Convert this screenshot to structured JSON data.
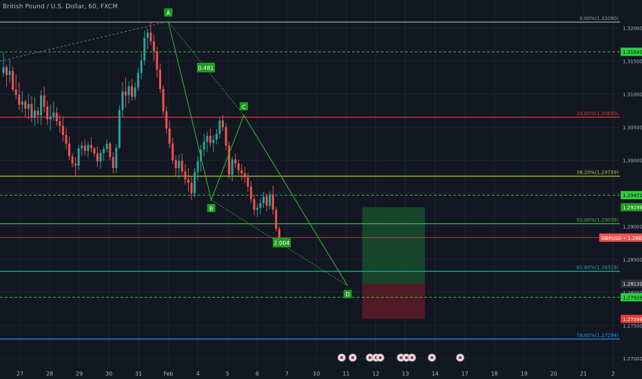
{
  "header": {
    "title": "British Pound / U.S. Dollar, 60, FXCM"
  },
  "colors": {
    "background": "#131722",
    "candle_up": "#26a69a",
    "candle_down": "#ef5350",
    "grid": "#1f2433",
    "axis_text": "#b2b5be",
    "pattern": "#2eb82e",
    "price_line": "#ef5350",
    "target_zone": "#1a6b35",
    "stop_zone": "#7a1e2a"
  },
  "chart_data": {
    "type": "candlestick",
    "symbol": "GBPUSD",
    "timeframe": "60",
    "x_tick_labels": [
      "27",
      "28",
      "29",
      "30",
      "31",
      "Feb",
      "4",
      "5",
      "6",
      "7",
      "10",
      "11",
      "12",
      "13",
      "14",
      "17",
      "18",
      "19",
      "20",
      "21",
      "2"
    ],
    "y_ticks": [
      "1.32000",
      "1.31500",
      "1.31000",
      "1.30500",
      "1.30000",
      "1.29500",
      "1.29000",
      "1.28500",
      "1.28000",
      "1.27500",
      "1.27000"
    ],
    "y_range": [
      1.2695,
      1.3232
    ],
    "last_price": {
      "label": "GBPUSD",
      "value": "1.28829"
    },
    "fib_levels": [
      {
        "label": "0.00%(1.32090)",
        "value": 1.3209,
        "color": "#9598a1"
      },
      {
        "label": "23.60%(1.30650)",
        "value": 1.3065,
        "color": "#e53935"
      },
      {
        "label": "38.20%(1.29759)",
        "value": 1.29759,
        "color": "#b5c934"
      },
      {
        "label": "50.00%(1.29039)",
        "value": 1.29039,
        "color": "#4caf50"
      },
      {
        "label": "61.80%(1.28319)",
        "value": 1.28319,
        "color": "#26a69a"
      },
      {
        "label": "78.60%(1.27294)",
        "value": 1.27294,
        "color": "#2196f3"
      }
    ],
    "dashed_levels": [
      {
        "label": "1.31640",
        "value": 1.3164
      },
      {
        "label": "1.29471",
        "value": 1.29471
      },
      {
        "label": "1.27926",
        "value": 1.27926
      }
    ],
    "position_tool": {
      "entry": "1.28131",
      "target": "1.29289",
      "stop": "1.27599"
    },
    "pattern_points": [
      {
        "label": "A",
        "day": 5.0,
        "value": 1.321
      },
      {
        "label": "B",
        "day": 6.45,
        "value": 1.294
      },
      {
        "label": "C",
        "day": 7.55,
        "value": 1.3068
      },
      {
        "label": "D",
        "day": 11.05,
        "value": 1.281
      }
    ],
    "ratios": [
      "0.481",
      "2.004"
    ],
    "candles": [
      [
        1.3132,
        1.3163,
        1.3127,
        1.3141
      ],
      [
        1.3141,
        1.3144,
        1.3111,
        1.3129
      ],
      [
        1.3129,
        1.3152,
        1.3117,
        1.3135
      ],
      [
        1.3135,
        1.3142,
        1.3104,
        1.3107
      ],
      [
        1.3107,
        1.313,
        1.3092,
        1.3099
      ],
      [
        1.3099,
        1.3118,
        1.3076,
        1.3084
      ],
      [
        1.3084,
        1.3105,
        1.3072,
        1.3089
      ],
      [
        1.3089,
        1.3092,
        1.3065,
        1.3078
      ],
      [
        1.3078,
        1.31,
        1.3062,
        1.3085
      ],
      [
        1.3085,
        1.3097,
        1.3058,
        1.3064
      ],
      [
        1.3064,
        1.3095,
        1.3052,
        1.3075
      ],
      [
        1.3075,
        1.3081,
        1.3055,
        1.3068
      ],
      [
        1.3068,
        1.3106,
        1.3053,
        1.3098
      ],
      [
        1.3098,
        1.3112,
        1.3072,
        1.3081
      ],
      [
        1.3081,
        1.309,
        1.3053,
        1.3062
      ],
      [
        1.3062,
        1.3084,
        1.3045,
        1.3066
      ],
      [
        1.3066,
        1.3089,
        1.306,
        1.3072
      ],
      [
        1.3072,
        1.308,
        1.3052,
        1.3059
      ],
      [
        1.3059,
        1.3069,
        1.3041,
        1.3052
      ],
      [
        1.3052,
        1.3066,
        1.3028,
        1.3038
      ],
      [
        1.3038,
        1.3049,
        1.3017,
        1.3025
      ],
      [
        1.3025,
        1.3036,
        1.3,
        1.3006
      ],
      [
        1.3006,
        1.3011,
        1.2989,
        1.2995
      ],
      [
        1.2995,
        1.3005,
        1.2975,
        1.2992
      ],
      [
        1.2992,
        1.3023,
        1.2985,
        1.3018
      ],
      [
        1.3018,
        1.3028,
        1.3007,
        1.3022
      ],
      [
        1.3022,
        1.3032,
        1.3007,
        1.3014
      ],
      [
        1.3014,
        1.3028,
        1.3004,
        1.3023
      ],
      [
        1.3023,
        1.3035,
        1.3012,
        1.3018
      ],
      [
        1.3018,
        1.302,
        1.3005,
        1.301
      ],
      [
        1.301,
        1.3021,
        1.299,
        1.2998
      ],
      [
        1.2998,
        1.3016,
        1.2987,
        1.3011
      ],
      [
        1.3011,
        1.3021,
        1.2999,
        1.3017
      ],
      [
        1.3017,
        1.3031,
        1.3012,
        1.3025
      ],
      [
        1.3025,
        1.3028,
        1.3,
        1.3005
      ],
      [
        1.3005,
        1.3012,
        1.298,
        1.2988
      ],
      [
        1.2988,
        1.3024,
        1.2981,
        1.3019
      ],
      [
        1.3019,
        1.3083,
        1.3017,
        1.3076
      ],
      [
        1.3076,
        1.3118,
        1.3066,
        1.3104
      ],
      [
        1.3104,
        1.3125,
        1.308,
        1.3098
      ],
      [
        1.3098,
        1.3119,
        1.3086,
        1.3112
      ],
      [
        1.3112,
        1.3123,
        1.309,
        1.3096
      ],
      [
        1.3096,
        1.3118,
        1.3091,
        1.311
      ],
      [
        1.311,
        1.314,
        1.3105,
        1.3132
      ],
      [
        1.3132,
        1.3162,
        1.3123,
        1.3151
      ],
      [
        1.3151,
        1.3196,
        1.3144,
        1.3185
      ],
      [
        1.3185,
        1.3199,
        1.3168,
        1.3193
      ],
      [
        1.3193,
        1.3209,
        1.3174,
        1.318
      ],
      [
        1.318,
        1.319,
        1.315,
        1.3165
      ],
      [
        1.3165,
        1.3172,
        1.3125,
        1.3137
      ],
      [
        1.3137,
        1.3146,
        1.3102,
        1.3108
      ],
      [
        1.3108,
        1.3113,
        1.3068,
        1.3074
      ],
      [
        1.3074,
        1.3082,
        1.304,
        1.3048
      ],
      [
        1.3048,
        1.306,
        1.3018,
        1.3025
      ],
      [
        1.3025,
        1.3034,
        1.2994,
        1.3
      ],
      [
        1.3,
        1.3008,
        1.2976,
        1.2988
      ],
      [
        1.2988,
        1.3009,
        1.2972,
        1.2999
      ],
      [
        1.2999,
        1.301,
        1.2975,
        1.2983
      ],
      [
        1.2983,
        1.2994,
        1.2963,
        1.2971
      ],
      [
        1.2971,
        1.2988,
        1.2952,
        1.2966
      ],
      [
        1.2966,
        1.2976,
        1.294,
        1.295
      ],
      [
        1.295,
        1.2988,
        1.2944,
        1.2982
      ],
      [
        1.2982,
        1.3006,
        1.2969,
        1.2999
      ],
      [
        1.2999,
        1.3023,
        1.2983,
        1.3016
      ],
      [
        1.3016,
        1.304,
        1.3006,
        1.3028
      ],
      [
        1.3028,
        1.3043,
        1.3012,
        1.3037
      ],
      [
        1.3037,
        1.3048,
        1.302,
        1.3026
      ],
      [
        1.3026,
        1.3038,
        1.3012,
        1.3031
      ],
      [
        1.3031,
        1.3047,
        1.3024,
        1.304
      ],
      [
        1.304,
        1.3065,
        1.3033,
        1.306
      ],
      [
        1.306,
        1.3068,
        1.3044,
        1.305
      ],
      [
        1.305,
        1.3056,
        1.3015,
        1.3022
      ],
      [
        1.3022,
        1.3028,
        1.2972,
        1.2978
      ],
      [
        1.2978,
        1.3005,
        1.2968,
        1.3001
      ],
      [
        1.3001,
        1.301,
        1.2989,
        1.2995
      ],
      [
        1.2995,
        1.3001,
        1.2978,
        1.2985
      ],
      [
        1.2985,
        1.2994,
        1.297,
        1.298
      ],
      [
        1.298,
        1.299,
        1.2966,
        1.2974
      ],
      [
        1.2974,
        1.2981,
        1.2952,
        1.296
      ],
      [
        1.296,
        1.2968,
        1.2935,
        1.2941
      ],
      [
        1.2941,
        1.2948,
        1.2917,
        1.2925
      ],
      [
        1.2925,
        1.2934,
        1.2914,
        1.2928
      ],
      [
        1.2928,
        1.2942,
        1.2918,
        1.2935
      ],
      [
        1.2935,
        1.2952,
        1.2928,
        1.2945
      ],
      [
        1.2945,
        1.2949,
        1.2923,
        1.2931
      ],
      [
        1.2931,
        1.2953,
        1.2926,
        1.2948
      ],
      [
        1.2948,
        1.2962,
        1.2918,
        1.2925
      ],
      [
        1.2925,
        1.2929,
        1.2892,
        1.2896
      ],
      [
        1.2896,
        1.29,
        1.2878,
        1.2883
      ]
    ]
  }
}
